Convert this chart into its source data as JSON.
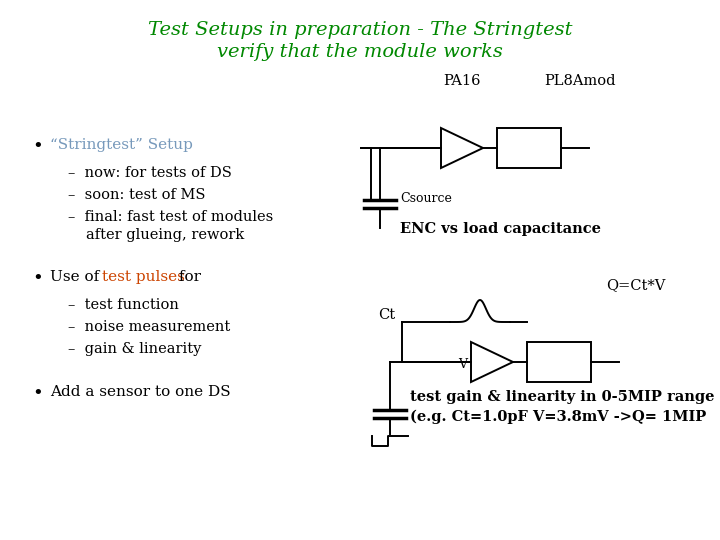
{
  "title_line1": "Test Setups in preparation - The Stringtest",
  "title_line2": "verify that the module works",
  "title_color": "#008800",
  "title_fontsize": 14,
  "bg_color": "#ffffff",
  "bullet1": "“Stringtest” Setup",
  "bullet1_color": "#7799bb",
  "bullet2_color": "#cc4400",
  "text_color": "#000000",
  "label_pa16": "PA16",
  "label_pl8amod": "PL8Amod",
  "label_csource": "Csource",
  "label_enc": "ENC vs load capacitance",
  "label_qctv": "Q=Ct*V",
  "label_ct": "Ct",
  "label_v": "V",
  "label_test1": "test gain & linearity in 0-5MIP range",
  "label_test2": "(e.g. Ct=1.0pF V=3.8mV ->Q= 1MIP"
}
